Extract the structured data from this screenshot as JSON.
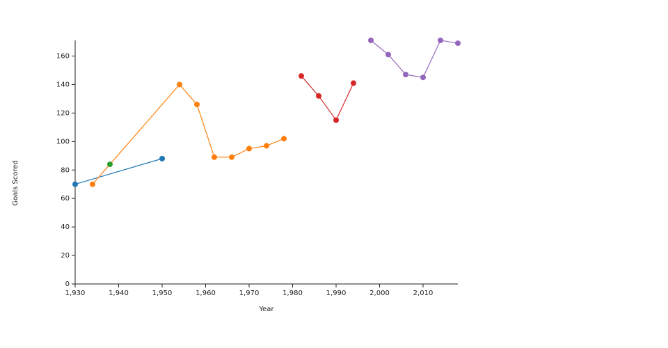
{
  "chart_data": {
    "type": "line",
    "x_label": "Year",
    "y_label": "Goals Scored",
    "series": [
      {
        "color": "#1f77b4",
        "x": [
          1930,
          1950
        ],
        "values": [
          70,
          88
        ]
      },
      {
        "color": "#ff7f0e",
        "x": [
          1934,
          1954,
          1958,
          1962,
          1966,
          1970,
          1974,
          1978
        ],
        "values": [
          70,
          140,
          126,
          89,
          89,
          95,
          97,
          102
        ]
      },
      {
        "color": "#2ca02c",
        "x": [
          1938
        ],
        "values": [
          84
        ]
      },
      {
        "color": "#d62728",
        "x": [
          1982,
          1986,
          1990,
          1994
        ],
        "values": [
          146,
          132,
          115,
          141
        ]
      },
      {
        "color": "#9467bd",
        "x": [
          1998,
          2002,
          2006,
          2010,
          2014,
          2018
        ],
        "values": [
          171,
          161,
          147,
          145,
          171,
          169
        ]
      }
    ],
    "xlim": [
      1930,
      2018
    ],
    "xticks": [
      {
        "value": 1930,
        "label": "1,930"
      },
      {
        "value": 1940,
        "label": "1,940"
      },
      {
        "value": 1950,
        "label": "1,950"
      },
      {
        "value": 1960,
        "label": "1,960"
      },
      {
        "value": 1970,
        "label": "1,970"
      },
      {
        "value": 1980,
        "label": "1,980"
      },
      {
        "value": 1990,
        "label": "1,990"
      },
      {
        "value": 2000,
        "label": "2,000"
      },
      {
        "value": 2010,
        "label": "2,010"
      }
    ],
    "ylim": [
      0,
      171
    ],
    "yticks": [
      0,
      20,
      40,
      60,
      80,
      100,
      120,
      140,
      160
    ],
    "grid": false
  }
}
